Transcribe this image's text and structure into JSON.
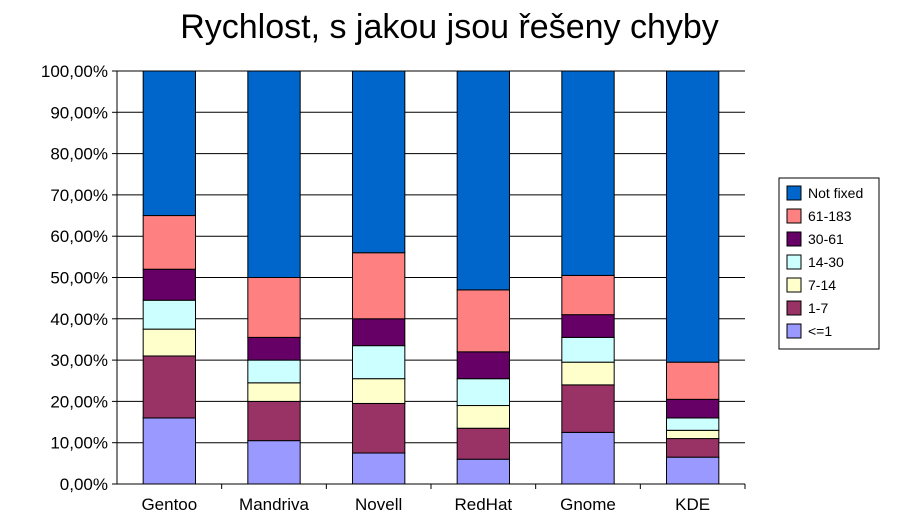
{
  "chart_data": {
    "type": "bar",
    "stacked": true,
    "title": "Rychlost, s jakou jsou řešeny chyby",
    "xlabel": "",
    "ylabel": "",
    "ylim": [
      0,
      100
    ],
    "y_tick_format": "percent_comma_2",
    "y_ticks": [
      "0,00%",
      "10,00%",
      "20,00%",
      "30,00%",
      "40,00%",
      "50,00%",
      "60,00%",
      "70,00%",
      "80,00%",
      "90,00%",
      "100,00%"
    ],
    "grid": true,
    "legend_position": "right",
    "categories": [
      "Gentoo",
      "Mandriva",
      "Novell",
      "RedHat",
      "Gnome",
      "KDE"
    ],
    "series": [
      {
        "name": "<=1",
        "color": "#9999ff",
        "values": [
          16.0,
          10.5,
          7.5,
          6.0,
          12.5,
          6.5
        ]
      },
      {
        "name": "1-7",
        "color": "#993366",
        "values": [
          15.0,
          9.5,
          12.0,
          7.5,
          11.5,
          4.5
        ]
      },
      {
        "name": "7-14",
        "color": "#ffffcc",
        "values": [
          6.5,
          4.5,
          6.0,
          5.5,
          5.5,
          2.0
        ]
      },
      {
        "name": "14-30",
        "color": "#ccffff",
        "values": [
          7.0,
          5.5,
          8.0,
          6.5,
          6.0,
          3.0
        ]
      },
      {
        "name": "30-61",
        "color": "#660066",
        "values": [
          7.5,
          5.5,
          6.5,
          6.5,
          5.5,
          4.5
        ]
      },
      {
        "name": "61-183",
        "color": "#ff8080",
        "values": [
          13.0,
          14.5,
          16.0,
          15.0,
          9.5,
          9.0
        ]
      },
      {
        "name": "Not fixed",
        "color": "#0066cc",
        "values": [
          35.0,
          50.0,
          44.0,
          53.0,
          49.5,
          70.5
        ]
      }
    ]
  }
}
